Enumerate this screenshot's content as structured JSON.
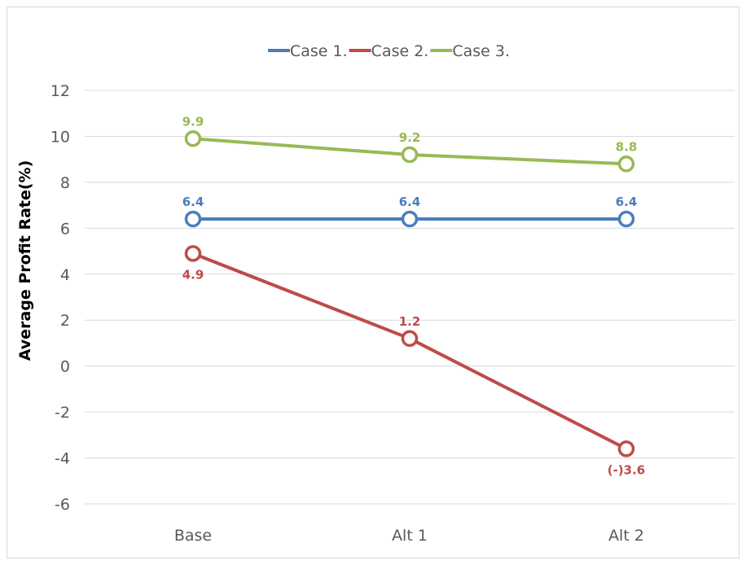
{
  "chart_data": {
    "type": "line",
    "title": "",
    "xlabel": "",
    "ylabel": "Average Profit Rate(%)",
    "categories": [
      "Base",
      "Alt 1",
      "Alt 2"
    ],
    "ylim": [
      -6,
      12
    ],
    "yticks": [
      12,
      10,
      8,
      6,
      4,
      2,
      0,
      -2,
      -4,
      -6
    ],
    "grid": true,
    "legend_position": "top",
    "series": [
      {
        "name": "Case 1.",
        "color": "#4a7ebb",
        "values": [
          6.4,
          6.4,
          6.4
        ],
        "labels": [
          "6.4",
          "6.4",
          "6.4"
        ],
        "label_position": "above"
      },
      {
        "name": "Case 2.",
        "color": "#be4b48",
        "values": [
          4.9,
          1.2,
          -3.6
        ],
        "labels": [
          "4.9",
          "1.2",
          "(-)3.6"
        ],
        "label_position": [
          "below",
          "above",
          "below"
        ]
      },
      {
        "name": "Case 3.",
        "color": "#98b954",
        "values": [
          9.9,
          9.2,
          8.8
        ],
        "labels": [
          "9.9",
          "9.2",
          "8.8"
        ],
        "label_position": "above"
      }
    ]
  }
}
